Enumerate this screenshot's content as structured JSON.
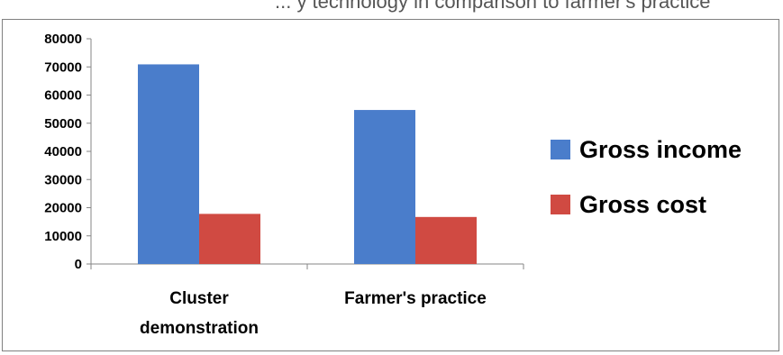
{
  "caption": {
    "text": "... y technology in comparison to farmer's practice"
  },
  "legend": {
    "position": "right",
    "items": [
      {
        "label": "Gross income",
        "color": "#4a7dcb"
      },
      {
        "label": "Gross cost",
        "color": "#d04a42"
      }
    ]
  },
  "chart_data": {
    "type": "bar",
    "title": "",
    "xlabel": "",
    "ylabel": "",
    "categories": [
      [
        "Cluster",
        "demonstration"
      ],
      [
        "Farmer's practice"
      ]
    ],
    "series": [
      {
        "name": "Gross income",
        "color": "#4a7dcb",
        "values": [
          70900,
          54700
        ]
      },
      {
        "name": "Gross cost",
        "color": "#d04a42",
        "values": [
          17800,
          16700
        ]
      }
    ],
    "ylim": [
      0,
      80000
    ],
    "yticks": [
      "0",
      "10000",
      "20000",
      "30000",
      "40000",
      "50000",
      "60000",
      "70000",
      "80000"
    ],
    "grid": false
  }
}
